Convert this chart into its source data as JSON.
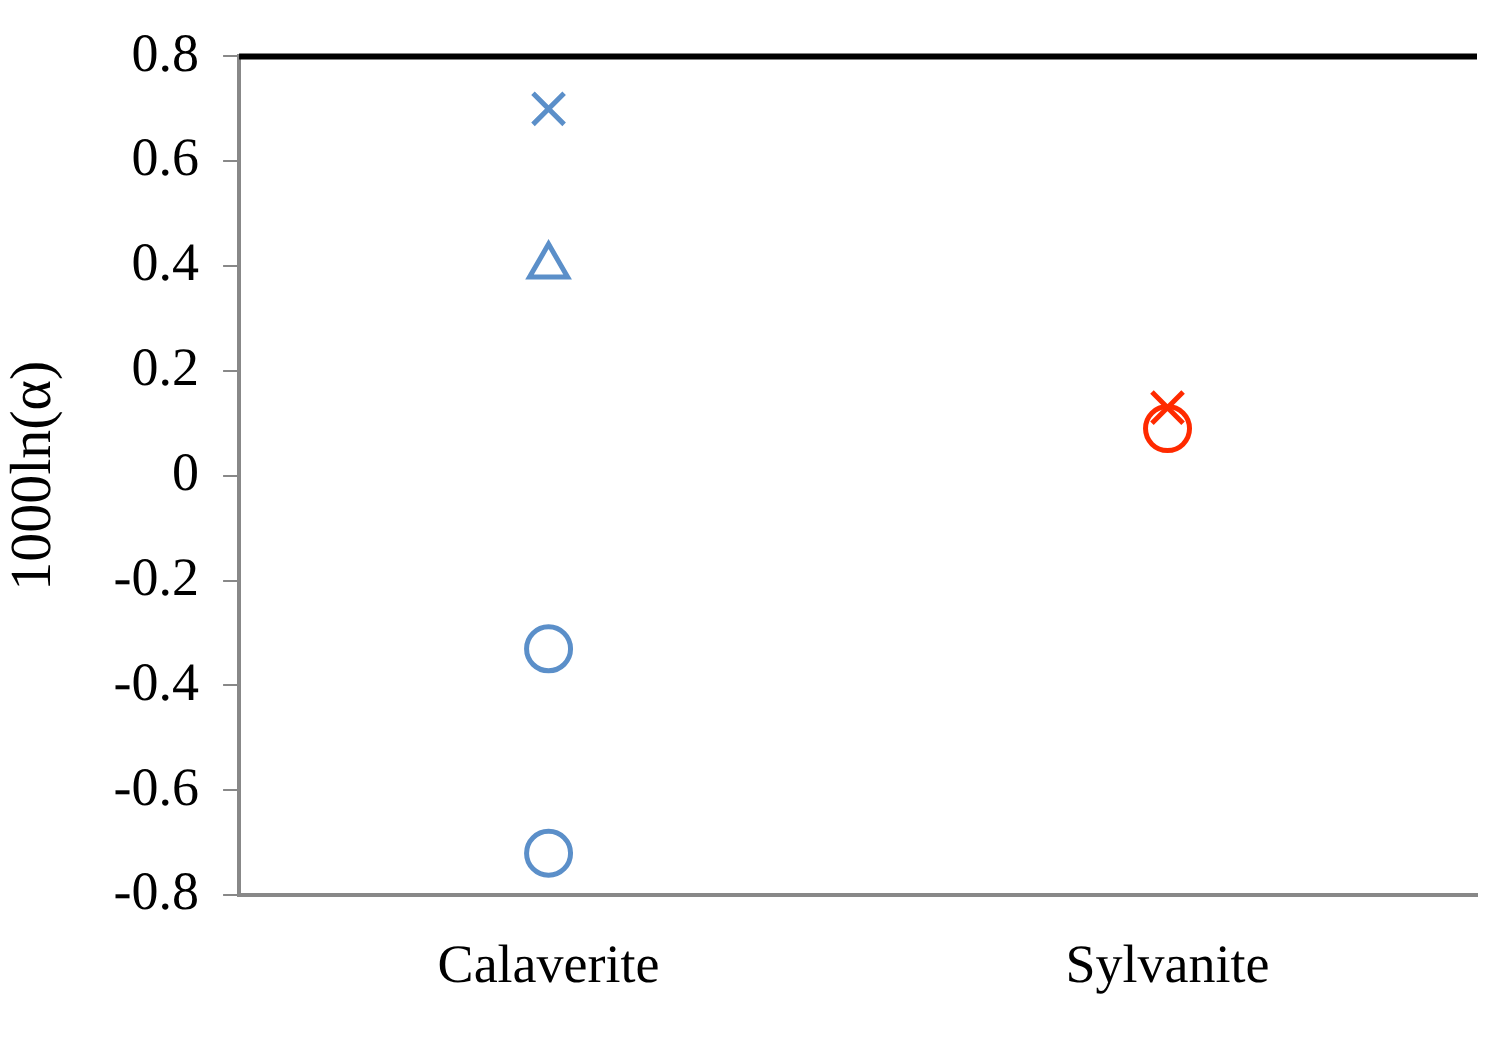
{
  "chart_data": {
    "type": "scatter",
    "ylabel": "1000ln(α)",
    "categories": [
      "Calaverite",
      "Sylvanite"
    ],
    "ylim": [
      -0.8,
      0.8
    ],
    "yticks": [
      -0.8,
      -0.6,
      -0.4,
      -0.2,
      0,
      0.2,
      0.4,
      0.6,
      0.8
    ],
    "grid": false,
    "legend": false,
    "series": [
      {
        "color": "#5b8fc9",
        "marker": "cross",
        "x": [
          "Calaverite"
        ],
        "values": [
          0.7
        ]
      },
      {
        "color": "#5b8fc9",
        "marker": "triangle",
        "x": [
          "Calaverite"
        ],
        "values": [
          0.4
        ]
      },
      {
        "color": "#5b8fc9",
        "marker": "circle",
        "x": [
          "Calaverite",
          "Calaverite"
        ],
        "values": [
          -0.33,
          -0.72
        ]
      },
      {
        "color": "#ff2a00",
        "marker": "circle",
        "x": [
          "Sylvanite"
        ],
        "values": [
          0.09
        ]
      },
      {
        "color": "#ff2a00",
        "marker": "cross",
        "x": [
          "Sylvanite"
        ],
        "values": [
          0.13
        ]
      }
    ]
  }
}
